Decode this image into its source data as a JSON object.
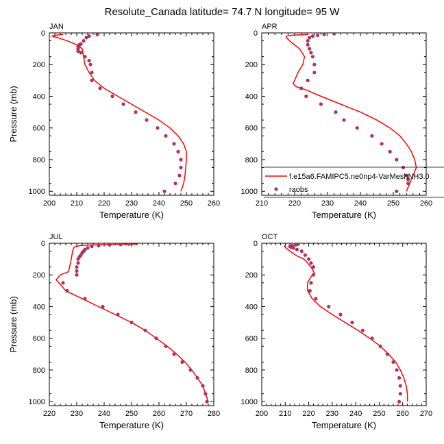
{
  "figure": {
    "title": "Resolute_Canada  latitude= 74.7 N longitude= 95 W"
  },
  "colors": {
    "model": "#ff0000",
    "obs": "#b03060"
  },
  "legend": {
    "model_label": "f.e15a6.FAMIPC5.ne0np4-VarMeshNH3.0",
    "obs_label": "raobs",
    "placement": "lower-right of APR panel"
  },
  "chart_data": [
    {
      "type": "line",
      "panel": "JAN",
      "title": "JAN",
      "xlabel": "Temperature (K)",
      "ylabel": "Pressure (mb)",
      "xlim": [
        200,
        260
      ],
      "ylim": [
        0,
        1025
      ],
      "y_inverted": true,
      "x_ticks": [
        200,
        210,
        220,
        230,
        240,
        250,
        260
      ],
      "y_ticks": [
        0,
        200,
        400,
        600,
        800,
        1000
      ],
      "series": [
        {
          "name": "f.e15a6.FAMIPC5.ne0np4-VarMeshNH3.0",
          "kind": "line",
          "x": [
            205,
            202,
            201,
            203,
            206.5,
            210,
            212,
            212.5,
            213,
            214.5,
            216.5,
            220,
            225,
            230,
            235,
            240,
            244,
            247,
            249,
            250,
            250,
            249.5,
            249,
            248
          ],
          "y": [
            10,
            15,
            20,
            30,
            50,
            75,
            100,
            150,
            200,
            250,
            300,
            350,
            400,
            450,
            500,
            550,
            600,
            650,
            700,
            750,
            800,
            900,
            950,
            1000
          ]
        },
        {
          "name": "raobs",
          "kind": "scatter",
          "x": [
            217.5,
            214.5,
            213.5,
            212.5,
            211.5,
            211,
            210.5,
            210.5,
            210.5,
            211.5,
            213,
            214.5,
            215,
            215.5,
            215.5,
            218.5,
            223,
            227,
            231.5,
            235.5,
            239.5,
            242.5,
            245.5,
            247,
            248,
            248,
            247.5,
            246,
            242
          ],
          "y": [
            10,
            20,
            30,
            50,
            70,
            75,
            85,
            100,
            115,
            125,
            150,
            175,
            200,
            250,
            300,
            350,
            400,
            450,
            500,
            550,
            600,
            650,
            700,
            750,
            800,
            850,
            900,
            950,
            1000
          ]
        }
      ]
    },
    {
      "type": "line",
      "panel": "APR",
      "title": "APR",
      "xlabel": "Temperature (K)",
      "ylabel": "",
      "xlim": [
        210,
        260
      ],
      "ylim": [
        0,
        1025
      ],
      "y_inverted": true,
      "x_ticks": [
        210,
        220,
        230,
        240,
        250,
        260
      ],
      "y_ticks": [
        0,
        200,
        400,
        600,
        800,
        1000
      ],
      "series": [
        {
          "name": "f.e15a6.FAMIPC5.ne0np4-VarMeshNH3.0",
          "kind": "line",
          "x": [
            224,
            219,
            217.5,
            217.5,
            219,
            221.5,
            223,
            222.5,
            221,
            220,
            219.5,
            220.5,
            223.5,
            228,
            234,
            240,
            245,
            249,
            252,
            254,
            255.5,
            256.5,
            257,
            256,
            255,
            254
          ],
          "y": [
            10,
            15,
            20,
            30,
            60,
            100,
            150,
            200,
            250,
            300,
            320,
            340,
            360,
            400,
            450,
            500,
            550,
            600,
            650,
            700,
            750,
            800,
            850,
            900,
            950,
            1000
          ]
        },
        {
          "name": "raobs",
          "kind": "scatter",
          "x": [
            232,
            229,
            227,
            225.5,
            224.5,
            224,
            224,
            224.5,
            225,
            225.5,
            226,
            226,
            224,
            222,
            223.5,
            228,
            232.5,
            235,
            239,
            243.5,
            246.5,
            249,
            251,
            253,
            254,
            254.5,
            254.5,
            251
          ],
          "y": [
            5,
            10,
            15,
            20,
            30,
            50,
            75,
            100,
            125,
            150,
            200,
            250,
            300,
            350,
            400,
            450,
            500,
            550,
            600,
            650,
            700,
            750,
            800,
            850,
            900,
            925,
            950,
            1000
          ]
        }
      ]
    },
    {
      "type": "line",
      "panel": "JUL",
      "title": "JUL",
      "xlabel": "Temperature (K)",
      "ylabel": "Pressure (mb)",
      "xlim": [
        220,
        280
      ],
      "ylim": [
        0,
        1025
      ],
      "y_inverted": true,
      "x_ticks": [
        220,
        230,
        240,
        250,
        260,
        270,
        280
      ],
      "y_ticks": [
        0,
        200,
        400,
        600,
        800,
        1000
      ],
      "series": [
        {
          "name": "f.e15a6.FAMIPC5.ne0np4-VarMeshNH3.0",
          "kind": "line",
          "x": [
            252,
            242,
            236,
            231,
            229,
            228.5,
            228,
            227,
            224,
            222.5,
            226,
            232,
            238,
            244,
            250,
            255,
            259,
            263,
            266.5,
            269.5,
            272,
            274,
            276,
            278
          ],
          "y": [
            5,
            8,
            10,
            15,
            25,
            50,
            100,
            180,
            200,
            230,
            300,
            350,
            400,
            450,
            500,
            550,
            600,
            650,
            700,
            750,
            800,
            850,
            900,
            1000
          ]
        },
        {
          "name": "raobs",
          "kind": "scatter",
          "x": [
            249,
            246,
            242,
            238,
            235.5,
            234,
            233,
            232.5,
            232,
            231.5,
            231,
            230.5,
            230.5,
            230,
            230,
            230,
            225,
            226.5,
            233,
            239.5,
            245,
            250,
            255,
            259,
            262.5,
            265.5,
            268.5,
            271.5,
            274,
            276,
            277,
            277.5
          ],
          "y": [
            5,
            8,
            10,
            15,
            20,
            30,
            40,
            50,
            60,
            75,
            85,
            100,
            125,
            150,
            175,
            200,
            250,
            300,
            350,
            400,
            450,
            500,
            550,
            600,
            650,
            700,
            750,
            800,
            850,
            900,
            950,
            1000
          ]
        }
      ]
    },
    {
      "type": "line",
      "panel": "OCT",
      "title": "OCT",
      "xlabel": "Temperature (K)",
      "ylabel": "",
      "xlim": [
        200,
        270
      ],
      "ylim": [
        0,
        1025
      ],
      "y_inverted": true,
      "x_ticks": [
        200,
        210,
        220,
        230,
        240,
        250,
        260,
        270
      ],
      "y_ticks": [
        0,
        200,
        400,
        600,
        800,
        1000
      ],
      "series": [
        {
          "name": "f.e15a6.FAMIPC5.ne0np4-VarMeshNH3.0",
          "kind": "line",
          "x": [
            209.5,
            210,
            212,
            215,
            218,
            221,
            222.5,
            221,
            219.5,
            219.5,
            221.5,
            225,
            230,
            235.5,
            241,
            246,
            250.5,
            254,
            257,
            259,
            260.5,
            261.5,
            262,
            262
          ],
          "y": [
            15,
            25,
            50,
            80,
            100,
            150,
            190,
            210,
            250,
            300,
            350,
            400,
            450,
            500,
            550,
            600,
            650,
            700,
            750,
            800,
            850,
            900,
            950,
            1000
          ]
        },
        {
          "name": "raobs",
          "kind": "scatter",
          "x": [
            215.5,
            214.5,
            213,
            212,
            212.5,
            213.5,
            215,
            217,
            218.5,
            220,
            221,
            222,
            222,
            221,
            220.5,
            223,
            228.5,
            233.5,
            238.5,
            243,
            247,
            250.5,
            253.5,
            256,
            257.5,
            258.5,
            259,
            259,
            258.5
          ],
          "y": [
            5,
            10,
            15,
            20,
            25,
            30,
            40,
            50,
            75,
            100,
            125,
            150,
            200,
            250,
            300,
            350,
            400,
            450,
            500,
            550,
            600,
            650,
            700,
            750,
            800,
            850,
            900,
            950,
            1000
          ]
        }
      ]
    }
  ]
}
